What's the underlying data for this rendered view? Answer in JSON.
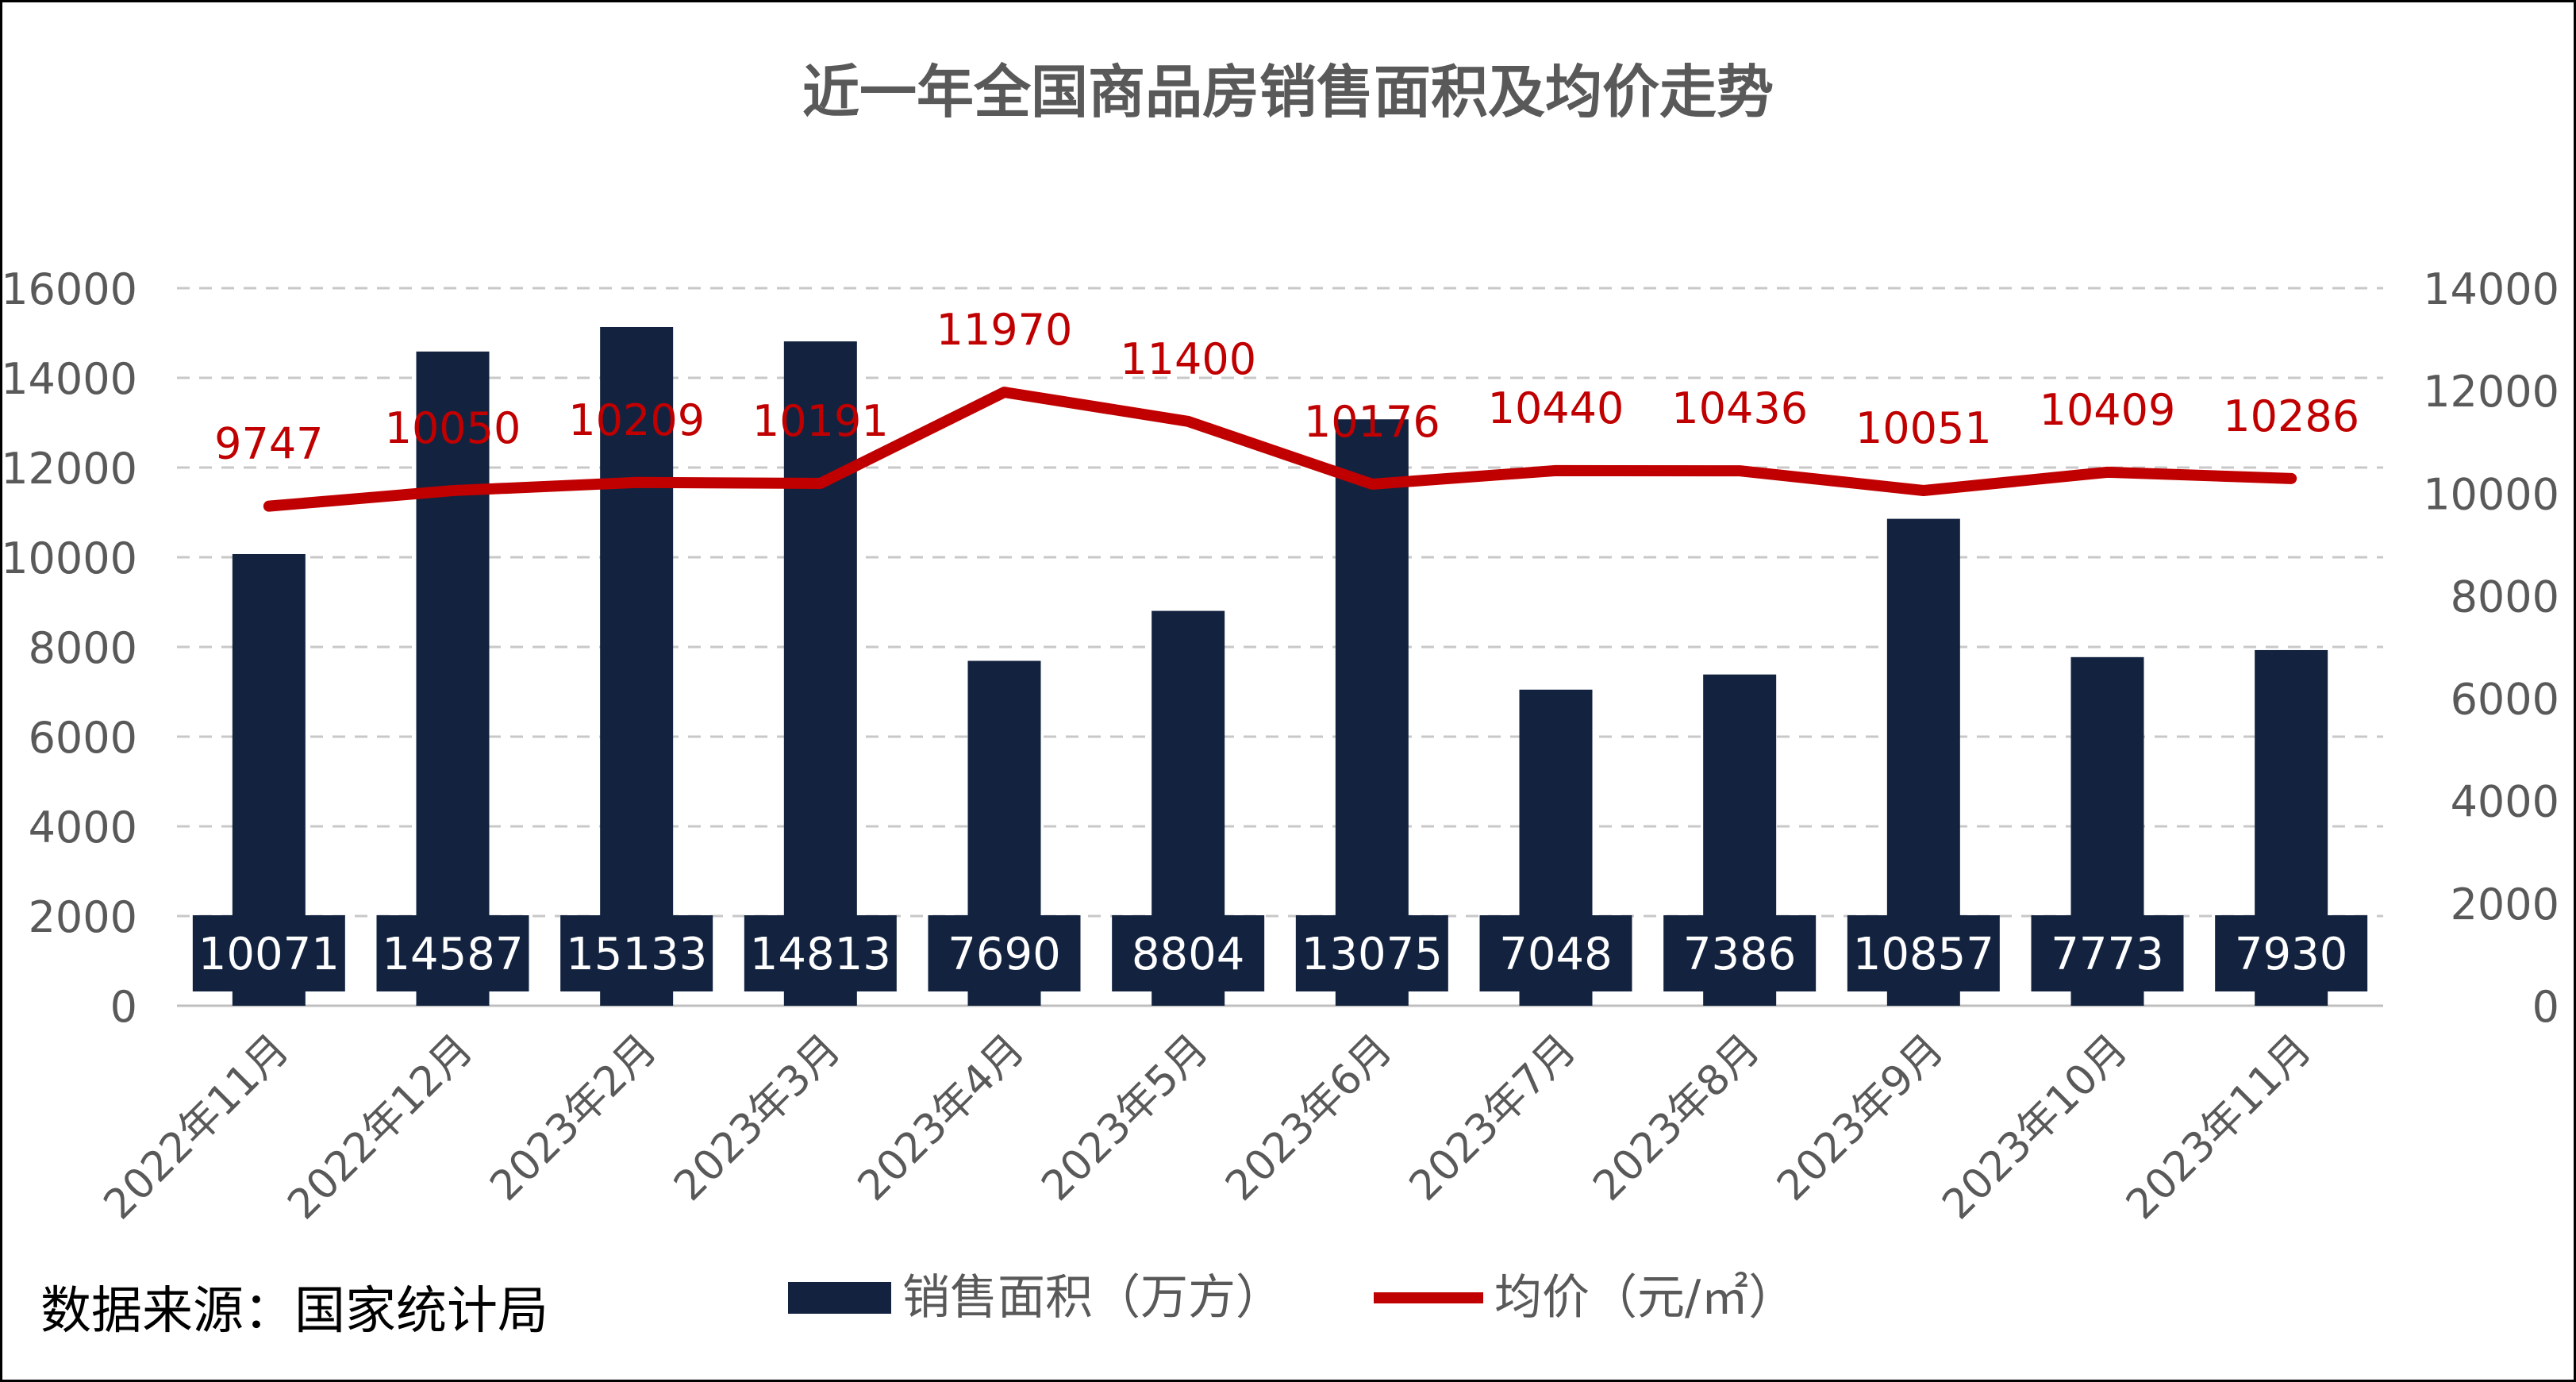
{
  "chart_data": {
    "type": "bar+line",
    "title": "近一年全国商品房销售面积及均价走势",
    "categories": [
      "2022年11月",
      "2022年12月",
      "2023年2月",
      "2023年3月",
      "2023年4月",
      "2023年5月",
      "2023年6月",
      "2023年7月",
      "2023年8月",
      "2023年9月",
      "2023年10月",
      "2023年11月"
    ],
    "series": [
      {
        "name": "销售面积（万方）",
        "type": "bar",
        "axis": "left",
        "values": [
          10071,
          14587,
          15133,
          14813,
          7690,
          8804,
          13075,
          7048,
          7386,
          10857,
          7773,
          7930
        ]
      },
      {
        "name": "均价（元/㎡）",
        "type": "line",
        "axis": "right",
        "values": [
          9747,
          10050,
          10209,
          10191,
          11970,
          11400,
          10176,
          10440,
          10436,
          10051,
          10409,
          10286
        ]
      }
    ],
    "y_left": {
      "ylim": [
        0,
        16000
      ],
      "ticks": [
        "0",
        "2000",
        "4000",
        "6000",
        "8000",
        "10000",
        "12000",
        "14000",
        "16000"
      ]
    },
    "y_right": {
      "ylim": [
        0,
        14000
      ],
      "ticks": [
        "0",
        "2000",
        "4000",
        "6000",
        "8000",
        "10000",
        "12000",
        "14000"
      ]
    },
    "grid": "horizontal dashed",
    "legend_position": "bottom",
    "colors": {
      "bar": "#13233f",
      "line": "#c00000",
      "grid": "#c8c8c8",
      "text": "#595959",
      "bar_label": "#ffffff"
    }
  },
  "source_note": "数据来源：国家统计局"
}
